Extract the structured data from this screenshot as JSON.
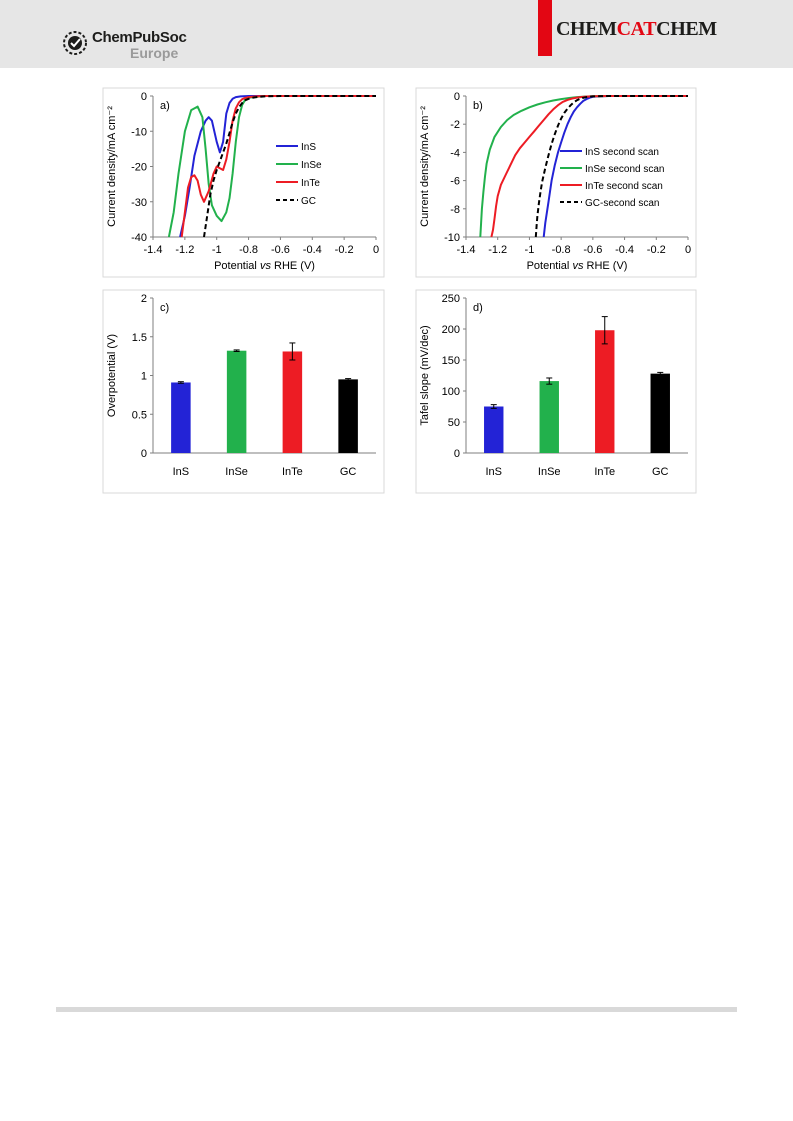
{
  "header": {
    "publisher_name": "ChemPubSoc",
    "publisher_sub": "Europe",
    "journal_parts": [
      "CHEM",
      "CAT",
      "CHEM"
    ],
    "badge_icon": "chempubsoc-badge-icon",
    "accent_color": "#e30613",
    "band_color": "#e6e6e6"
  },
  "colors": {
    "InS": "#2323d6",
    "InSe": "#22b14c",
    "InTe": "#ed1c24",
    "GC": "#000000"
  },
  "chart_data": [
    {
      "panel": "a)",
      "type": "line",
      "xlabel_pre": "Potential ",
      "xlabel_italic": "vs",
      "xlabel_post": " RHE (V)",
      "ylabel": "Current density/mA cm⁻²",
      "xlim": [
        -1.4,
        0
      ],
      "ylim": [
        -40,
        0
      ],
      "xticks": [
        -1.4,
        -1.2,
        -1,
        -0.8,
        -0.6,
        -0.4,
        -0.2,
        0
      ],
      "yticks": [
        0,
        -10,
        -20,
        -30,
        -40
      ],
      "legend_position": "right-middle",
      "series": [
        {
          "name": "InS",
          "style": "solid",
          "x": [
            -1.23,
            -1.2,
            -1.17,
            -1.14,
            -1.1,
            -1.07,
            -1.05,
            -1.03,
            -1.0,
            -0.98,
            -0.96,
            -0.95,
            -0.94,
            -0.92,
            -0.9,
            -0.88,
            -0.85,
            -0.8,
            -0.7,
            -0.5,
            -0.2,
            0
          ],
          "y": [
            -40,
            -34,
            -26,
            -17,
            -10,
            -7,
            -6,
            -7,
            -13,
            -16,
            -13,
            -9,
            -5,
            -2,
            -0.8,
            -0.3,
            -0.1,
            0,
            0,
            0,
            0,
            0
          ]
        },
        {
          "name": "InSe",
          "style": "solid",
          "x": [
            -1.3,
            -1.27,
            -1.24,
            -1.2,
            -1.16,
            -1.12,
            -1.09,
            -1.07,
            -1.05,
            -1.03,
            -1.0,
            -0.97,
            -0.94,
            -0.92,
            -0.9,
            -0.88,
            -0.86,
            -0.84,
            -0.82,
            -0.8,
            -0.75,
            -0.7,
            -0.6,
            -0.4,
            0
          ],
          "y": [
            -40,
            -33,
            -22,
            -10,
            -4,
            -3,
            -6,
            -15,
            -25,
            -31,
            -34,
            -35.5,
            -33,
            -29,
            -22,
            -13,
            -6,
            -2.5,
            -1,
            -0.5,
            -0.2,
            0,
            0,
            0,
            0
          ]
        },
        {
          "name": "InTe",
          "style": "solid",
          "x": [
            -1.22,
            -1.2,
            -1.18,
            -1.16,
            -1.14,
            -1.12,
            -1.1,
            -1.08,
            -1.05,
            -1.02,
            -1.0,
            -0.98,
            -0.96,
            -0.94,
            -0.92,
            -0.9,
            -0.88,
            -0.86,
            -0.84,
            -0.82,
            -0.8,
            -0.75,
            -0.7,
            -0.6,
            -0.4,
            0
          ],
          "y": [
            -40,
            -33,
            -26,
            -23,
            -22.5,
            -24,
            -28,
            -30,
            -27,
            -22,
            -20,
            -20.5,
            -21,
            -18,
            -13,
            -7,
            -3.5,
            -1.8,
            -0.9,
            -0.5,
            -0.3,
            -0.1,
            0,
            0,
            0,
            0
          ]
        },
        {
          "name": "GC",
          "style": "dashed",
          "x": [
            -1.08,
            -1.06,
            -1.04,
            -1.02,
            -1.0,
            -0.98,
            -0.96,
            -0.94,
            -0.92,
            -0.9,
            -0.88,
            -0.86,
            -0.84,
            -0.82,
            -0.8,
            -0.78,
            -0.75,
            -0.7,
            -0.6,
            -0.4,
            0
          ],
          "y": [
            -40,
            -34,
            -28,
            -24,
            -21,
            -18.5,
            -16,
            -13.5,
            -10.5,
            -7.5,
            -5,
            -3.2,
            -2,
            -1.2,
            -0.8,
            -0.5,
            -0.3,
            -0.1,
            0,
            0,
            0
          ]
        }
      ]
    },
    {
      "panel": "b)",
      "type": "line",
      "xlabel_pre": "Potential ",
      "xlabel_italic": "vs",
      "xlabel_post": " RHE (V)",
      "ylabel": "Current density/mA cm⁻²",
      "xlim": [
        -1.4,
        0
      ],
      "ylim": [
        -10,
        0
      ],
      "xticks": [
        -1.4,
        -1.2,
        -1,
        -0.8,
        -0.6,
        -0.4,
        -0.2,
        0
      ],
      "yticks": [
        0,
        -2,
        -4,
        -6,
        -8,
        -10
      ],
      "legend_position": "right-middle",
      "series": [
        {
          "name": "InS second scan",
          "key": "InS",
          "style": "solid",
          "x": [
            -0.91,
            -0.9,
            -0.88,
            -0.86,
            -0.84,
            -0.82,
            -0.8,
            -0.78,
            -0.76,
            -0.74,
            -0.72,
            -0.7,
            -0.68,
            -0.66,
            -0.64,
            -0.62,
            -0.6,
            -0.55,
            -0.5,
            -0.3,
            0
          ],
          "y": [
            -10,
            -9,
            -7.5,
            -6,
            -4.9,
            -4,
            -3.3,
            -2.6,
            -2,
            -1.5,
            -1.1,
            -0.8,
            -0.55,
            -0.35,
            -0.22,
            -0.12,
            -0.06,
            -0.02,
            0,
            0,
            0
          ]
        },
        {
          "name": "InSe second scan",
          "key": "InSe",
          "style": "solid",
          "x": [
            -1.31,
            -1.305,
            -1.3,
            -1.29,
            -1.28,
            -1.27,
            -1.25,
            -1.22,
            -1.18,
            -1.14,
            -1.1,
            -1.05,
            -1.0,
            -0.95,
            -0.9,
            -0.85,
            -0.8,
            -0.75,
            -0.7,
            -0.65,
            -0.6,
            -0.5,
            -0.3,
            0
          ],
          "y": [
            -10,
            -9,
            -8,
            -6.8,
            -5.7,
            -4.8,
            -3.8,
            -2.9,
            -2.2,
            -1.7,
            -1.35,
            -1.05,
            -0.8,
            -0.6,
            -0.45,
            -0.32,
            -0.22,
            -0.14,
            -0.08,
            -0.04,
            -0.02,
            0,
            0,
            0
          ]
        },
        {
          "name": "InTe second scan",
          "key": "InTe",
          "style": "solid",
          "x": [
            -1.24,
            -1.23,
            -1.22,
            -1.21,
            -1.2,
            -1.18,
            -1.15,
            -1.12,
            -1.09,
            -1.06,
            -1.03,
            -1.0,
            -0.97,
            -0.94,
            -0.91,
            -0.88,
            -0.85,
            -0.82,
            -0.79,
            -0.76,
            -0.73,
            -0.7,
            -0.67,
            -0.64,
            -0.6,
            -0.55,
            -0.5,
            -0.3,
            0
          ],
          "y": [
            -10,
            -9.5,
            -8.7,
            -7.8,
            -7.1,
            -6.3,
            -5.6,
            -4.9,
            -4.2,
            -3.7,
            -3.3,
            -2.9,
            -2.5,
            -2.1,
            -1.7,
            -1.3,
            -0.95,
            -0.65,
            -0.42,
            -0.28,
            -0.18,
            -0.11,
            -0.07,
            -0.04,
            -0.02,
            -0.01,
            0,
            0,
            0
          ]
        },
        {
          "name": "GC-second scan",
          "key": "GC",
          "style": "dashed",
          "x": [
            -0.96,
            -0.955,
            -0.95,
            -0.94,
            -0.93,
            -0.92,
            -0.9,
            -0.88,
            -0.86,
            -0.84,
            -0.82,
            -0.8,
            -0.78,
            -0.76,
            -0.74,
            -0.72,
            -0.7,
            -0.68,
            -0.66,
            -0.64,
            -0.62,
            -0.6,
            -0.55,
            -0.5,
            -0.3,
            0
          ],
          "y": [
            -10,
            -9.2,
            -8.5,
            -7.6,
            -6.8,
            -6.1,
            -5.1,
            -4.2,
            -3.4,
            -2.7,
            -2.1,
            -1.6,
            -1.2,
            -0.9,
            -0.65,
            -0.45,
            -0.3,
            -0.2,
            -0.13,
            -0.08,
            -0.05,
            -0.03,
            -0.01,
            0,
            0,
            0
          ]
        }
      ]
    },
    {
      "panel": "c)",
      "type": "bar",
      "ylabel": "Overpotential (V)",
      "ylim": [
        0,
        2
      ],
      "yticks": [
        0,
        0.5,
        1,
        1.5,
        2
      ],
      "categories": [
        "InS",
        "InSe",
        "InTe",
        "GC"
      ],
      "values": [
        0.91,
        1.32,
        1.31,
        0.95
      ],
      "errors": [
        0.01,
        0.01,
        0.11,
        0.01
      ]
    },
    {
      "panel": "d)",
      "type": "bar",
      "ylabel": "Tafel slope (mV/dec)",
      "ylim": [
        0,
        250
      ],
      "yticks": [
        0,
        50,
        100,
        150,
        200,
        250
      ],
      "categories": [
        "InS",
        "InSe",
        "InTe",
        "GC"
      ],
      "values": [
        75,
        116,
        198,
        128
      ],
      "errors": [
        3,
        5,
        22,
        2
      ]
    }
  ]
}
